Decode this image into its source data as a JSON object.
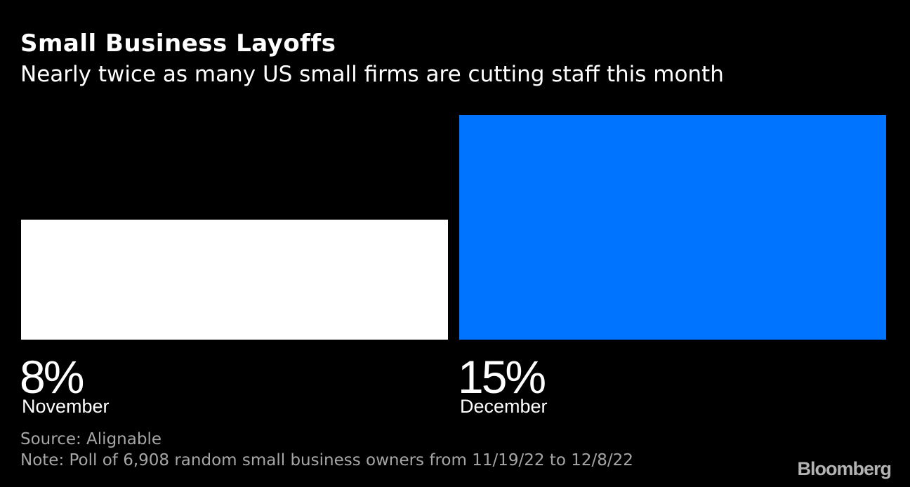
{
  "chart_data": {
    "type": "bar",
    "title": "Small Business Layoffs",
    "subtitle": "Nearly twice as many US small firms are cutting staff this month",
    "categories": [
      "November",
      "December"
    ],
    "values": [
      8,
      15
    ],
    "value_labels": [
      "8%",
      "15%"
    ],
    "unit": "%",
    "ylim": [
      0,
      15
    ],
    "colors": [
      "#ffffff",
      "#0073ff"
    ],
    "source": "Source: Alignable",
    "note": "Note: Poll of 6,908 random small business owners from 11/19/22 to 12/8/22"
  },
  "branding": {
    "logo": "Bloomberg"
  },
  "colors": {
    "background": "#000000",
    "text": "#ffffff",
    "muted": "#a6a6a6"
  }
}
